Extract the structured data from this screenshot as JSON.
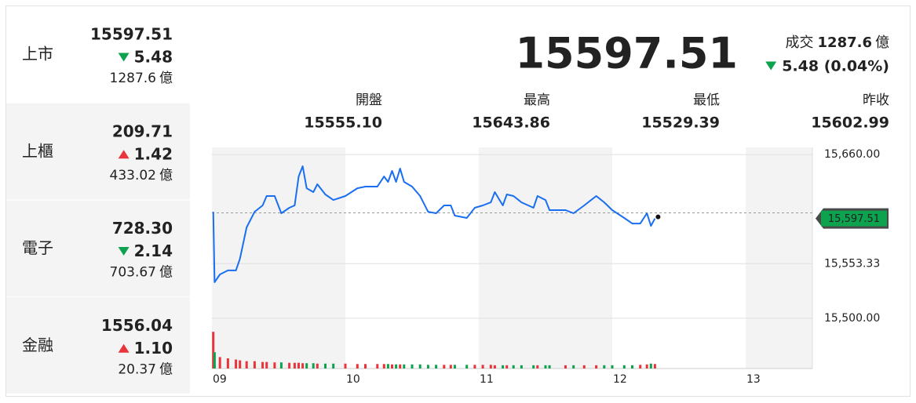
{
  "markets": [
    {
      "name": "上市",
      "value": "15597.51",
      "change": "5.48",
      "direction": "down",
      "volume": "1287.6"
    },
    {
      "name": "上櫃",
      "value": "209.71",
      "change": "1.42",
      "direction": "up",
      "volume": "433.02"
    },
    {
      "name": "電子",
      "value": "728.30",
      "change": "2.14",
      "direction": "down",
      "volume": "703.67"
    },
    {
      "name": "金融",
      "value": "1556.04",
      "change": "1.10",
      "direction": "up",
      "volume": "20.37"
    }
  ],
  "unit": "億",
  "colors": {
    "up": "#e8343b",
    "down": "#0ca24e"
  },
  "summary": {
    "price": "15597.51",
    "trade_label": "成交",
    "trade_volume": "1287.6",
    "change": "5.48 (0.04%)",
    "direction": "down"
  },
  "stats": [
    {
      "label": "開盤",
      "value": "15555.10"
    },
    {
      "label": "最高",
      "value": "15643.86"
    },
    {
      "label": "最低",
      "value": "15529.39"
    },
    {
      "label": "昨收",
      "value": "15602.99"
    }
  ],
  "chart_data": {
    "type": "line",
    "x": [
      9.01,
      9.02,
      9.06,
      9.12,
      9.18,
      9.21,
      9.26,
      9.32,
      9.38,
      9.41,
      9.47,
      9.52,
      9.58,
      9.62,
      9.65,
      9.68,
      9.71,
      9.76,
      9.79,
      9.85,
      9.91,
      10.0,
      10.09,
      10.15,
      10.24,
      10.29,
      10.32,
      10.35,
      10.38,
      10.41,
      10.44,
      10.5,
      10.56,
      10.62,
      10.68,
      10.74,
      10.79,
      10.82,
      10.91,
      10.97,
      11.03,
      11.09,
      11.12,
      11.18,
      11.21,
      11.26,
      11.32,
      11.41,
      11.44,
      11.5,
      11.53,
      11.65,
      11.71,
      11.79,
      11.88,
      11.94,
      12.0,
      12.09,
      12.15,
      12.21,
      12.26,
      12.29,
      12.32
    ],
    "series": [
      {
        "color": "#1a6ef0",
        "values": [
          15604.1,
          15535.2,
          15542.8,
          15546.7,
          15546.7,
          15558.2,
          15588.8,
          15604.1,
          15610.3,
          15619.5,
          15619.5,
          15602.6,
          15608.0,
          15610.3,
          15638.6,
          15648.6,
          15627.1,
          15623.3,
          15631.0,
          15621.0,
          15615.6,
          15619.5,
          15627.1,
          15628.7,
          15628.7,
          15638.6,
          15633.3,
          15644.0,
          15633.3,
          15646.3,
          15633.3,
          15628.7,
          15619.5,
          15604.1,
          15602.6,
          15610.3,
          15610.3,
          15600.3,
          15598.0,
          15608.0,
          15610.3,
          15613.3,
          15623.3,
          15610.3,
          15621.0,
          15619.5,
          15613.3,
          15608.0,
          15619.5,
          15615.6,
          15605.7,
          15605.7,
          15602.6,
          15610.3,
          15619.5,
          15613.3,
          15605.7,
          15598.0,
          15592.6,
          15592.6,
          15602.6,
          15590.3,
          15597.51
        ]
      },
      {
        "axis": "y2",
        "values": [
          90,
          40,
          28,
          25,
          22,
          20,
          18,
          18,
          16,
          16,
          15,
          15,
          14,
          14,
          14,
          13,
          13,
          13,
          12,
          12,
          12,
          12,
          11,
          11,
          11,
          11,
          11,
          10,
          10,
          10,
          10,
          10,
          10,
          9,
          9,
          9,
          9,
          9,
          9,
          9,
          9,
          9,
          8,
          8,
          8,
          8,
          8,
          8,
          8,
          8,
          8,
          8,
          8,
          8,
          8,
          8,
          8,
          8,
          8,
          9,
          10,
          12,
          11
        ]
      }
    ],
    "xlim": [
      9,
      13.5
    ],
    "xticks": [
      {
        "value": 9,
        "label": "09"
      },
      {
        "value": 10,
        "label": "10"
      },
      {
        "value": 11,
        "label": "11"
      },
      {
        "value": 12,
        "label": "12"
      },
      {
        "value": 13,
        "label": "13"
      }
    ],
    "ylim": [
      15493,
      15667
    ],
    "yticks": [
      {
        "value": 15660,
        "label": "15,660.00"
      },
      {
        "value": 15553.33,
        "label": "15,553.33"
      },
      {
        "value": 15500,
        "label": "15,500.00"
      }
    ],
    "y2lim": [
      0,
      100
    ],
    "reference": 15602.99,
    "last_tag": {
      "value": 15597.51,
      "label": "15,597.51"
    },
    "grid": true
  }
}
